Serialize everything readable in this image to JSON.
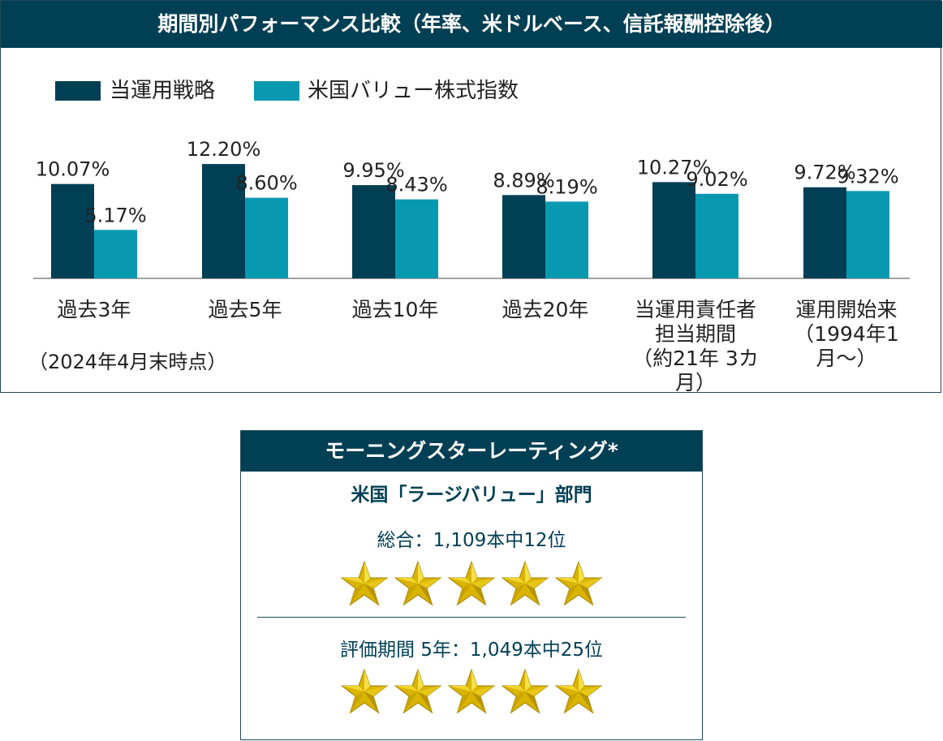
{
  "header": {
    "title": "期間別パフォーマンス比較（年率、米ドルベース、信託報酬控除後）"
  },
  "colors": {
    "header_bg": "#003f54",
    "strategy": "#003f54",
    "index": "#0899b1"
  },
  "chart_data": {
    "type": "bar",
    "title": "期間別パフォーマンス比較（年率、米ドルベース、信託報酬控除後）",
    "categories": [
      "過去3年",
      "過去5年",
      "過去10年",
      "過去20年",
      "当運用責任者担当期間（約21年3カ月）",
      "運用開始来（1994年1月〜）"
    ],
    "category_lines": [
      [
        "過去3年"
      ],
      [
        "過去5年"
      ],
      [
        "過去10年"
      ],
      [
        "過去20年"
      ],
      [
        "当運用責任者",
        "担当期間",
        "（約21年 3カ月）"
      ],
      [
        "運用開始来",
        "（1994年1月〜）"
      ]
    ],
    "series": [
      {
        "name": "当運用戦略",
        "values": [
          10.07,
          12.2,
          9.95,
          8.89,
          10.27,
          9.72
        ],
        "labels": [
          "10.07%",
          "12.20%",
          "9.95%",
          "8.89%",
          "10.27%",
          "9.72%"
        ]
      },
      {
        "name": "米国バリュー株式指数",
        "values": [
          5.17,
          8.6,
          8.43,
          8.19,
          9.02,
          9.32
        ],
        "labels": [
          "5.17%",
          "8.60%",
          "8.43%",
          "8.19%",
          "9.02%",
          "9.32%"
        ]
      }
    ],
    "ylim": [
      0,
      13
    ],
    "legend": "top-left",
    "grid": false,
    "note": "（2024年4月末時点）"
  },
  "rating": {
    "title": "モーニングスターレーティング*",
    "category": "米国「ラージバリュー」部門",
    "overall": "総合：1,109本中12位",
    "overall_stars": 5,
    "five_year": "評価期間 5年：1,049本中25位",
    "five_year_stars": 5
  }
}
